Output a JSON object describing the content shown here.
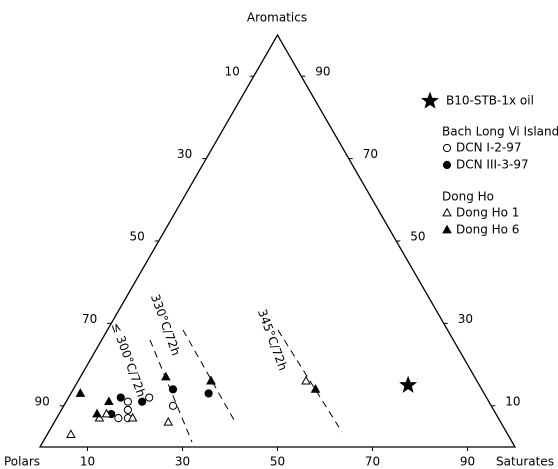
{
  "chart_data": {
    "type": "ternary",
    "vertex_labels": {
      "top": "Aromatics",
      "left": "Polars",
      "right": "Saturates"
    },
    "saturates_ticks": [
      10,
      30,
      50,
      70,
      90
    ],
    "polars_ticks": [
      10,
      30,
      50,
      70,
      90
    ],
    "aromatics_ticks": [
      10,
      30,
      50,
      70,
      90
    ],
    "series": [
      {
        "name": "B10-STB-1x oil",
        "marker": "star",
        "filled": true,
        "color": "#000000",
        "saturates": [
          70
        ],
        "aromatics": [
          15
        ]
      },
      {
        "name": "DCN I-2-97",
        "group": "Bach Long Vi Island",
        "marker": "circle",
        "filled": false,
        "color": "#000000",
        "saturates": [
          13,
          13,
          15,
          17,
          23,
          14
        ],
        "aromatics": [
          11,
          7,
          7,
          12,
          10,
          9
        ]
      },
      {
        "name": "DCN III-3-97",
        "group": "Bach Long Vi Island",
        "marker": "circle",
        "filled": true,
        "color": "#000000",
        "saturates": [
          11,
          16,
          11,
          21,
          29
        ],
        "aromatics": [
          12,
          11,
          8,
          14,
          13
        ]
      },
      {
        "name": "Dong Ho 1",
        "group": "Dong Ho",
        "marker": "triangle",
        "filled": false,
        "color": "#000000",
        "saturates": [
          5,
          10,
          9,
          16,
          24,
          48,
          28
        ],
        "aromatics": [
          3,
          8,
          7,
          7,
          6,
          16,
          16
        ]
      },
      {
        "name": "Dong Ho 6",
        "group": "Dong Ho",
        "marker": "triangle",
        "filled": true,
        "color": "#000000",
        "saturates": [
          2,
          9,
          8,
          18,
          28,
          51
        ],
        "aromatics": [
          13,
          11,
          8,
          17,
          16,
          14
        ]
      }
    ],
    "legend_groups": [
      "Bach Long Vi Island",
      "Dong Ho"
    ],
    "annotations": [
      "≤ 300°C/72h",
      "330°C/72h",
      "345°C/72h"
    ]
  }
}
